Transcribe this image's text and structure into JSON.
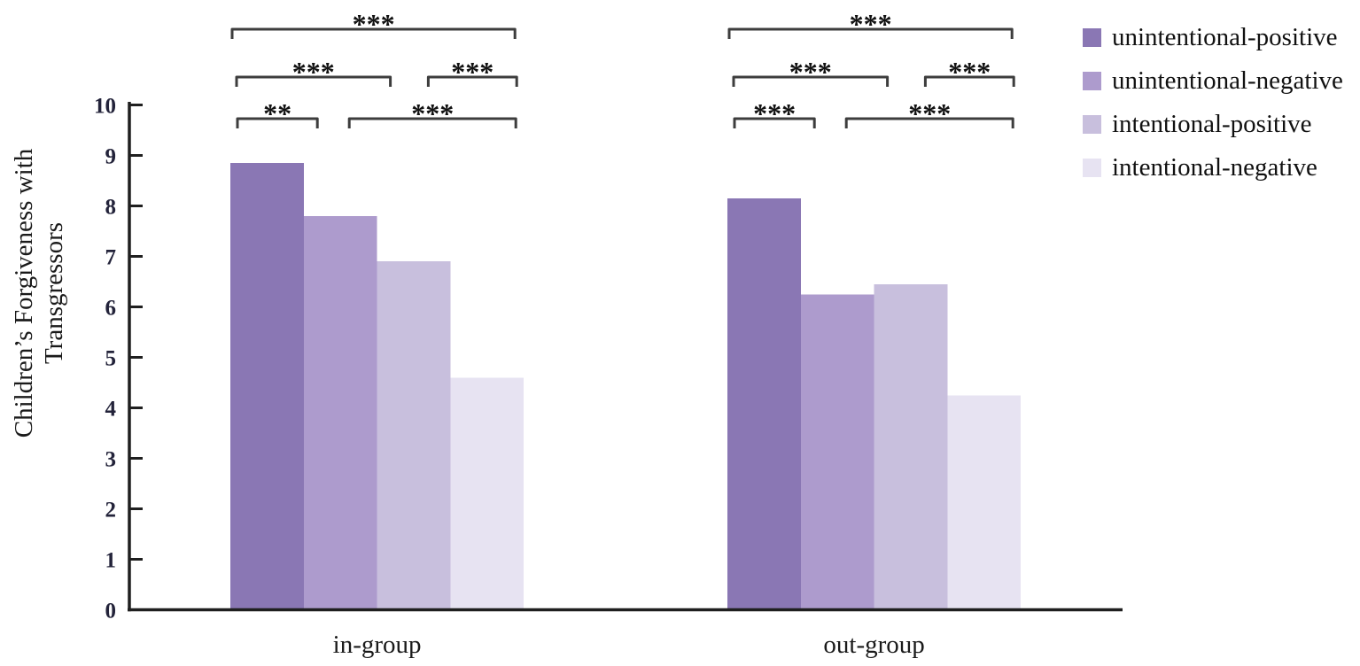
{
  "figure": {
    "background": "#ffffff"
  },
  "chart_data": {
    "type": "bar",
    "title": "",
    "xlabel": "",
    "ylabel": "Children’s Forgiveness with Transgressors",
    "ylabel_lines": [
      "Children’s Forgiveness with",
      "Transgressors"
    ],
    "ylim": [
      0,
      10
    ],
    "yticks": [
      0,
      1,
      2,
      3,
      4,
      5,
      6,
      7,
      8,
      9,
      10
    ],
    "grid": false,
    "legend_position": "top-right",
    "categories": [
      "in-group",
      "out-group"
    ],
    "series": [
      {
        "name": "unintentional-positive",
        "color": "#8a77b4",
        "values": [
          8.85,
          8.15
        ]
      },
      {
        "name": "unintentional-negative",
        "color": "#ad9bcd",
        "values": [
          7.8,
          6.25
        ]
      },
      {
        "name": "intentional-positive",
        "color": "#c8bfdd",
        "values": [
          6.9,
          6.45
        ]
      },
      {
        "name": "intentional-negative",
        "color": "#e7e3f2",
        "values": [
          4.6,
          4.25
        ]
      }
    ],
    "significance_brackets": [
      {
        "category": "in-group",
        "from_series": 1,
        "to_series": 4,
        "row": 3,
        "label": "***"
      },
      {
        "category": "in-group",
        "from_series": 1,
        "to_series": 3,
        "row": 2,
        "label": "***"
      },
      {
        "category": "in-group",
        "from_series": 3,
        "to_series": 4,
        "row": 2,
        "label": "***"
      },
      {
        "category": "in-group",
        "from_series": 1,
        "to_series": 2,
        "row": 1,
        "label": "**"
      },
      {
        "category": "in-group",
        "from_series": 2,
        "to_series": 4,
        "row": 1,
        "label": "***"
      },
      {
        "category": "out-group",
        "from_series": 1,
        "to_series": 4,
        "row": 3,
        "label": "***"
      },
      {
        "category": "out-group",
        "from_series": 1,
        "to_series": 3,
        "row": 2,
        "label": "***"
      },
      {
        "category": "out-group",
        "from_series": 3,
        "to_series": 4,
        "row": 2,
        "label": "***"
      },
      {
        "category": "out-group",
        "from_series": 1,
        "to_series": 2,
        "row": 1,
        "label": "***"
      },
      {
        "category": "out-group",
        "from_series": 2,
        "to_series": 4,
        "row": 1,
        "label": "***"
      }
    ],
    "colors": {
      "axis": "#1f1f1f",
      "bracket": "#3d3d3d",
      "text": "#1a1a1a",
      "tick_label": "#23233a"
    }
  }
}
